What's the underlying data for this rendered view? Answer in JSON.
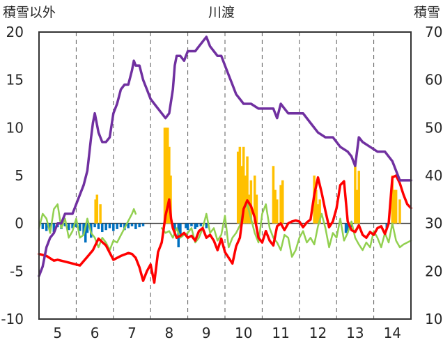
{
  "chart_data": {
    "type": "line",
    "title": "川渡",
    "ylabel_left": "積雪以外",
    "ylabel_right": "積雪",
    "x_ticks": [
      "5",
      "6",
      "7",
      "8",
      "9",
      "10",
      "11",
      "12",
      "13",
      "14"
    ],
    "xlim": [
      4.5,
      14.5
    ],
    "ylim_left": [
      -10,
      20
    ],
    "ylim_right": [
      10,
      70
    ],
    "y_ticks_left": [
      "-10",
      "-5",
      "0",
      "5",
      "10",
      "15",
      "20"
    ],
    "y_ticks_right": [
      "10",
      "20",
      "30",
      "40",
      "50",
      "60",
      "70"
    ],
    "grid": "vertical dashed at each day",
    "colors": {
      "snow_depth": "#7030a0",
      "red_series": "#ff0000",
      "green_series": "#92d050",
      "orange_bars": "#ffc000",
      "blue_bars": "#0070c0"
    },
    "series": [
      {
        "key": "snow_depth",
        "axis": "right",
        "x": [
          4.5,
          4.6,
          4.7,
          4.8,
          4.9,
          5.0,
          5.1,
          5.2,
          5.3,
          5.4,
          5.5,
          5.6,
          5.7,
          5.8,
          5.9,
          5.95,
          6.0,
          6.1,
          6.15,
          6.2,
          6.3,
          6.4,
          6.5,
          6.6,
          6.7,
          6.8,
          6.9,
          7.0,
          7.05,
          7.1,
          7.2,
          7.3,
          7.4,
          7.5,
          7.6,
          7.7,
          7.8,
          7.9,
          8.0,
          8.1,
          8.15,
          8.2,
          8.3,
          8.4,
          8.5,
          8.6,
          8.7,
          8.8,
          8.9,
          9.0,
          9.1,
          9.2,
          9.3,
          9.4,
          9.5,
          9.6,
          9.7,
          9.8,
          9.9,
          10.0,
          10.2,
          10.4,
          10.6,
          10.8,
          10.9,
          11.0,
          11.1,
          11.2,
          11.4,
          11.6,
          11.8,
          12.0,
          12.2,
          12.4,
          12.6,
          12.8,
          12.9,
          13.0,
          13.1,
          13.2,
          13.4,
          13.6,
          13.8,
          14.0,
          14.2,
          14.5
        ],
        "values": [
          19,
          21,
          25,
          27,
          28,
          30,
          30,
          32,
          32,
          32,
          34,
          36,
          38,
          41,
          48,
          51,
          53,
          49,
          48,
          47,
          47,
          48,
          53,
          55,
          58,
          59,
          59,
          62,
          64,
          63,
          63,
          60,
          58,
          56,
          55,
          54,
          53,
          52,
          53,
          58,
          63,
          65,
          65,
          64,
          66,
          66,
          66,
          67,
          68,
          69,
          67,
          66,
          65,
          65,
          63,
          61,
          59,
          57,
          56,
          55,
          55,
          54,
          54,
          54,
          52,
          55,
          54,
          53,
          53,
          53,
          51,
          49,
          48,
          48,
          46,
          45,
          44,
          42,
          48,
          47,
          46,
          45,
          45,
          43,
          39,
          39
        ],
        "label": ""
      },
      {
        "key": "red_series",
        "axis": "left",
        "x": [
          4.5,
          4.7,
          4.9,
          5.0,
          5.2,
          5.4,
          5.6,
          5.8,
          5.95,
          6.1,
          6.3,
          6.5,
          6.7,
          6.9,
          7.0,
          7.1,
          7.2,
          7.3,
          7.4,
          7.5,
          7.6,
          7.7,
          7.8,
          7.9,
          8.0,
          8.05,
          8.1,
          8.2,
          8.3,
          8.4,
          8.5,
          8.6,
          8.7,
          8.8,
          8.9,
          9.0,
          9.1,
          9.2,
          9.3,
          9.4,
          9.5,
          9.6,
          9.7,
          9.8,
          9.9,
          10.0,
          10.1,
          10.2,
          10.3,
          10.4,
          10.5,
          10.6,
          10.7,
          10.8,
          10.9,
          11.0,
          11.1,
          11.2,
          11.3,
          11.4,
          11.5,
          11.6,
          11.7,
          11.8,
          11.9,
          12.0,
          12.1,
          12.2,
          12.3,
          12.4,
          12.5,
          12.6,
          12.7,
          12.8,
          12.9,
          13.0,
          13.1,
          13.2,
          13.3,
          13.4,
          13.5,
          13.6,
          13.7,
          13.8,
          13.9,
          14.0,
          14.1,
          14.2,
          14.3,
          14.4,
          14.5
        ],
        "values": [
          -3.2,
          -3.4,
          -3.9,
          -3.8,
          -4.0,
          -4.2,
          -4.4,
          -3.5,
          -2.8,
          -1.6,
          -2.3,
          -3.8,
          -3.4,
          -3.1,
          -3.2,
          -3.6,
          -4.6,
          -6.0,
          -5.0,
          -4.3,
          -6.2,
          -3.0,
          -2.0,
          0.8,
          2.5,
          0.5,
          -0.5,
          -1.5,
          -1.3,
          -1.0,
          -1.5,
          -1.3,
          -1.8,
          -0.8,
          -0.5,
          -1.5,
          -1.2,
          -1.8,
          -2.8,
          -1.6,
          -3.0,
          -3.6,
          -4.2,
          -2.4,
          -1.5,
          1.5,
          2.4,
          1.8,
          0.6,
          -1.5,
          -2.0,
          -0.8,
          -1.8,
          -2.3,
          -0.3,
          0.0,
          -0.7,
          0.0,
          0.2,
          0.3,
          0.2,
          -0.4,
          0.1,
          0.4,
          3.0,
          4.8,
          3.2,
          1.3,
          -0.4,
          0.2,
          1.6,
          4.0,
          4.4,
          0.2,
          -0.7,
          -0.9,
          -0.2,
          -1.2,
          -1.5,
          -0.9,
          -1.2,
          -0.5,
          -0.3,
          -1.1,
          0.0,
          4.8,
          5.0,
          4.2,
          3.0,
          2.0,
          1.6
        ],
        "label": ""
      },
      {
        "key": "green_series",
        "axis": "left",
        "x": [
          4.5,
          4.6,
          4.7,
          4.8,
          4.9,
          5.0,
          5.1,
          5.2,
          5.3,
          5.4,
          5.5,
          5.6,
          5.7,
          5.8,
          5.9,
          6.0,
          6.1,
          6.2,
          6.3,
          6.4,
          6.5,
          6.6,
          7.0,
          7.05,
          7.1,
          7.2,
          7.3,
          7.5,
          7.7,
          7.8,
          7.9,
          8.0,
          8.1,
          8.2,
          8.3,
          8.4,
          8.5,
          8.6,
          8.7,
          8.8,
          8.9,
          9.0,
          9.1,
          9.2,
          9.3,
          9.4,
          9.5,
          9.6,
          9.7,
          9.8,
          9.9,
          10.0,
          10.1,
          10.2,
          10.3,
          10.4,
          10.5,
          10.6,
          10.7,
          10.8,
          10.9,
          11.0,
          11.1,
          11.2,
          11.3,
          11.4,
          11.5,
          11.6,
          11.7,
          11.8,
          11.9,
          12.0,
          12.1,
          12.2,
          12.3,
          12.4,
          12.5,
          12.6,
          12.7,
          12.8,
          12.9,
          13.0,
          13.1,
          13.2,
          13.3,
          13.4,
          13.5,
          13.6,
          13.7,
          13.8,
          13.9,
          14.0,
          14.1,
          14.2,
          14.3,
          14.4,
          14.5
        ],
        "values": [
          -0.5,
          1.0,
          0.5,
          -1.0,
          1.5,
          2.0,
          -0.5,
          0.5,
          -1.5,
          -0.8,
          0.5,
          -1.5,
          -1.2,
          0.5,
          -1.0,
          -1.5,
          -2.5,
          -1.5,
          -2.0,
          -2.8,
          -1.8,
          -2.0,
          1.0,
          1.5,
          1.0,
          null,
          null,
          null,
          null,
          -0.5,
          -1.0,
          -0.8,
          -1.5,
          -0.5,
          -1.5,
          -1.2,
          -1.0,
          -0.5,
          -2.0,
          -1.5,
          -0.5,
          1.0,
          -1.0,
          -0.5,
          -1.8,
          -1.2,
          0.8,
          -2.5,
          -1.5,
          -1.0,
          -0.2,
          1.5,
          2.0,
          0.5,
          -1.0,
          -2.0,
          1.0,
          2.0,
          -0.5,
          -1.5,
          -2.0,
          -2.8,
          -1.2,
          -1.5,
          -3.5,
          -2.8,
          -1.5,
          -0.8,
          -2.0,
          -1.5,
          -2.2,
          -0.3,
          1.0,
          -0.5,
          -2.5,
          -1.0,
          -1.5,
          0.5,
          -1.8,
          -1.0,
          0.2,
          -1.5,
          -2.2,
          -2.8,
          -2.0,
          -2.5,
          -0.8,
          -1.5,
          -2.5,
          -1.0,
          -2.0,
          0.0,
          -1.8,
          -2.5,
          -2.2,
          -2.0,
          -1.8
        ],
        "label": ""
      }
    ],
    "bars_orange": {
      "axis": "left",
      "x": [
        6.02,
        6.06,
        6.15,
        7.88,
        7.92,
        7.96,
        8.0,
        8.04,
        9.85,
        9.9,
        9.95,
        10.0,
        10.05,
        10.1,
        10.15,
        10.2,
        10.3,
        10.35,
        10.8,
        10.85,
        10.9,
        11.0,
        11.05,
        11.9,
        11.95,
        12.0,
        12.05,
        13.0,
        13.05,
        13.1,
        14.0,
        14.05,
        14.1,
        14.2
      ],
      "values": [
        2.5,
        3.0,
        2.0,
        10.0,
        10.0,
        10.0,
        8.0,
        5.0,
        7.5,
        8.0,
        6.0,
        8.0,
        5.0,
        7.0,
        3.0,
        4.5,
        5.0,
        3.0,
        6.0,
        3.5,
        2.5,
        4.0,
        4.5,
        5.0,
        3.5,
        2.0,
        2.5,
        6.0,
        3.5,
        5.5,
        5.0,
        3.5,
        3.5,
        2.5
      ],
      "label": ""
    },
    "bars_blue": {
      "axis": "left",
      "x": [
        4.6,
        4.7,
        4.8,
        4.9,
        5.0,
        5.1,
        5.2,
        5.3,
        5.4,
        5.5,
        5.6,
        5.7,
        5.75,
        5.8,
        5.9,
        6.0,
        6.1,
        6.2,
        6.3,
        6.4,
        6.5,
        6.6,
        6.7,
        6.8,
        6.9,
        7.0,
        7.1,
        7.2,
        7.3,
        8.15,
        8.25,
        8.3,
        8.45,
        8.5,
        8.6,
        8.7,
        8.75,
        8.85,
        9.0,
        12.75,
        12.8,
        12.85,
        12.9,
        13.85
      ],
      "values": [
        -0.6,
        -0.8,
        -0.5,
        -0.9,
        -0.4,
        -0.6,
        -0.3,
        -0.7,
        -0.5,
        -0.4,
        -0.8,
        -1.2,
        -2.0,
        -1.0,
        -1.5,
        -0.4,
        -0.6,
        -0.9,
        -0.7,
        -0.5,
        -0.8,
        -0.6,
        -0.4,
        -0.7,
        -0.5,
        -0.3,
        -0.6,
        -0.4,
        -0.3,
        -1.0,
        -2.5,
        -1.2,
        -0.5,
        -0.7,
        -0.3,
        -0.6,
        -0.4,
        -0.3,
        -0.5,
        -1.0,
        -0.8,
        -0.6,
        -0.4,
        -0.5
      ],
      "label": ""
    }
  }
}
